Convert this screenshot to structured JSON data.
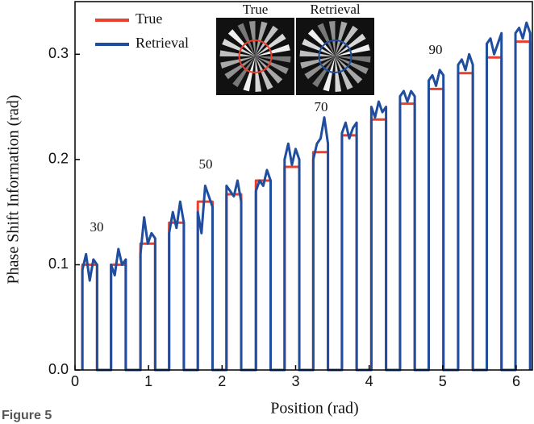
{
  "chart_data": {
    "type": "line",
    "xlabel": "Position (rad)",
    "ylabel": "Phase Shift Information (rad)",
    "figure_label": "Figure 5",
    "inset_labels": [
      "True",
      "Retrieval"
    ],
    "annotations": [
      "30",
      "50",
      "70",
      "90"
    ],
    "legend": "upper left",
    "xlim": [
      0,
      6.22
    ],
    "ylim": [
      0,
      0.35
    ],
    "xticks": [
      0,
      1,
      2,
      3,
      4,
      5,
      6
    ],
    "yticks": [
      {
        "value": 0,
        "label": "0.0"
      },
      0.1,
      0.2,
      0.3
    ],
    "x": [
      0.1,
      0.1,
      0.15,
      0.2,
      0.25,
      0.3,
      0.3,
      0.49,
      0.49,
      0.54,
      0.59,
      0.64,
      0.69,
      0.69,
      0.89,
      0.89,
      0.94,
      0.99,
      1.04,
      1.09,
      1.09,
      1.28,
      1.28,
      1.33,
      1.38,
      1.43,
      1.48,
      1.48,
      1.67,
      1.67,
      1.72,
      1.77,
      1.82,
      1.87,
      1.87,
      2.06,
      2.06,
      2.11,
      2.16,
      2.21,
      2.26,
      2.26,
      2.46,
      2.46,
      2.51,
      2.56,
      2.61,
      2.66,
      2.66,
      2.85,
      2.85,
      2.9,
      2.95,
      3.0,
      3.05,
      3.05,
      3.24,
      3.24,
      3.29,
      3.34,
      3.39,
      3.44,
      3.44,
      3.63,
      3.63,
      3.68,
      3.73,
      3.78,
      3.83,
      3.83,
      4.03,
      4.03,
      4.08,
      4.13,
      4.18,
      4.23,
      4.23,
      4.42,
      4.42,
      4.47,
      4.52,
      4.57,
      4.62,
      4.62,
      4.81,
      4.81,
      4.86,
      4.91,
      4.96,
      5.01,
      5.01,
      5.21,
      5.21,
      5.26,
      5.31,
      5.36,
      5.41,
      5.41,
      5.6,
      5.6,
      5.65,
      5.7,
      5.75,
      5.8,
      5.8,
      5.99,
      5.99,
      6.04,
      6.09,
      6.14,
      6.19,
      6.19
    ],
    "series": [
      {
        "name": "True",
        "color": "#e8402c",
        "values": [
          0,
          0.1,
          0.1,
          0.1,
          0.1,
          0.1,
          0,
          0,
          0.1,
          0.1,
          0.1,
          0.1,
          0.1,
          0,
          0,
          0.12,
          0.12,
          0.12,
          0.12,
          0.12,
          0,
          0,
          0.14,
          0.14,
          0.14,
          0.14,
          0.14,
          0,
          0,
          0.16,
          0.16,
          0.16,
          0.16,
          0.16,
          0,
          0,
          0.167,
          0.167,
          0.167,
          0.167,
          0.167,
          0,
          0,
          0.18,
          0.18,
          0.18,
          0.18,
          0.18,
          0,
          0,
          0.193,
          0.193,
          0.193,
          0.193,
          0.193,
          0,
          0,
          0.207,
          0.207,
          0.207,
          0.207,
          0.207,
          0,
          0,
          0.223,
          0.223,
          0.223,
          0.223,
          0.223,
          0,
          0,
          0.238,
          0.238,
          0.238,
          0.238,
          0.238,
          0,
          0,
          0.253,
          0.253,
          0.253,
          0.253,
          0.253,
          0,
          0,
          0.267,
          0.267,
          0.267,
          0.267,
          0.267,
          0,
          0,
          0.282,
          0.282,
          0.282,
          0.282,
          0.282,
          0,
          0,
          0.297,
          0.297,
          0.297,
          0.297,
          0.297,
          0,
          0,
          0.312,
          0.312,
          0.312,
          0.312,
          0.312,
          0
        ]
      },
      {
        "name": "Retrieval",
        "color": "#1f4e9e",
        "values": [
          0,
          0.095,
          0.11,
          0.085,
          0.105,
          0.1,
          0,
          0,
          0.1,
          0.09,
          0.115,
          0.1,
          0.105,
          0,
          0,
          0.11,
          0.145,
          0.12,
          0.13,
          0.125,
          0,
          0,
          0.13,
          0.15,
          0.135,
          0.16,
          0.14,
          0,
          0,
          0.15,
          0.13,
          0.175,
          0.165,
          0.155,
          0,
          0,
          0.175,
          0.17,
          0.165,
          0.18,
          0.16,
          0,
          0,
          0.17,
          0.18,
          0.175,
          0.19,
          0.18,
          0,
          0,
          0.2,
          0.215,
          0.195,
          0.21,
          0.2,
          0,
          0,
          0.2,
          0.215,
          0.22,
          0.24,
          0.215,
          0,
          0,
          0.225,
          0.235,
          0.22,
          0.23,
          0.235,
          0,
          0,
          0.25,
          0.24,
          0.255,
          0.245,
          0.25,
          0,
          0,
          0.26,
          0.265,
          0.255,
          0.265,
          0.26,
          0,
          0,
          0.275,
          0.28,
          0.27,
          0.285,
          0.28,
          0,
          0,
          0.29,
          0.295,
          0.285,
          0.3,
          0.29,
          0,
          0,
          0.31,
          0.315,
          0.3,
          0.31,
          0.32,
          0,
          0,
          0.32,
          0.325,
          0.315,
          0.33,
          0.32,
          0
        ]
      }
    ]
  }
}
